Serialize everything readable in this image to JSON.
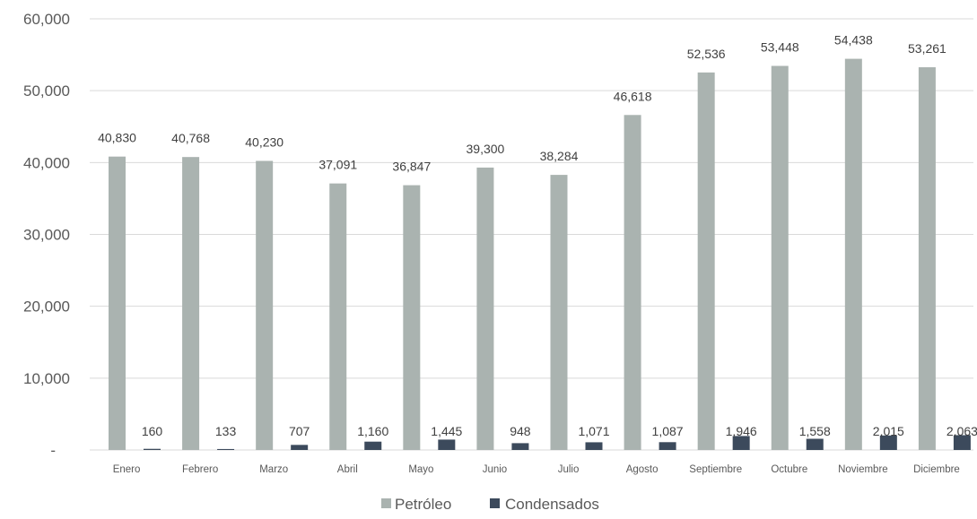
{
  "chart_data": {
    "type": "bar",
    "categories": [
      "Enero",
      "Febrero",
      "Marzo",
      "Abril",
      "Mayo",
      "Junio",
      "Julio",
      "Agosto",
      "Septiembre",
      "Octubre",
      "Noviembre",
      "Diciembre"
    ],
    "series": [
      {
        "name": "Petróleo",
        "color": "#aab3b0",
        "values": [
          40830,
          40768,
          40230,
          37091,
          36847,
          39300,
          38284,
          46618,
          52536,
          53448,
          54438,
          53261
        ],
        "labels": [
          "40,830",
          "40,768",
          "40,230",
          "37,091",
          "36,847",
          "39,300",
          "38,284",
          "46,618",
          "52,536",
          "53,448",
          "54,438",
          "53,261"
        ]
      },
      {
        "name": "Condensados",
        "color": "#3c4a5c",
        "values": [
          160,
          133,
          707,
          1160,
          1445,
          948,
          1071,
          1087,
          1946,
          1558,
          2015,
          2063
        ],
        "labels": [
          "160",
          "133",
          "707",
          "1,160",
          "1,445",
          "948",
          "1,071",
          "1,087",
          "1,946",
          "1,558",
          "2,015",
          "2,063"
        ]
      }
    ],
    "ylim": [
      0,
      60000
    ],
    "yticks": [
      0,
      10000,
      20000,
      30000,
      40000,
      50000,
      60000
    ],
    "ytick_labels": [
      "-",
      "10,000",
      "20,000",
      "30,000",
      "40,000",
      "50,000",
      "60,000"
    ],
    "grid": true,
    "legend_position": "bottom-center"
  }
}
